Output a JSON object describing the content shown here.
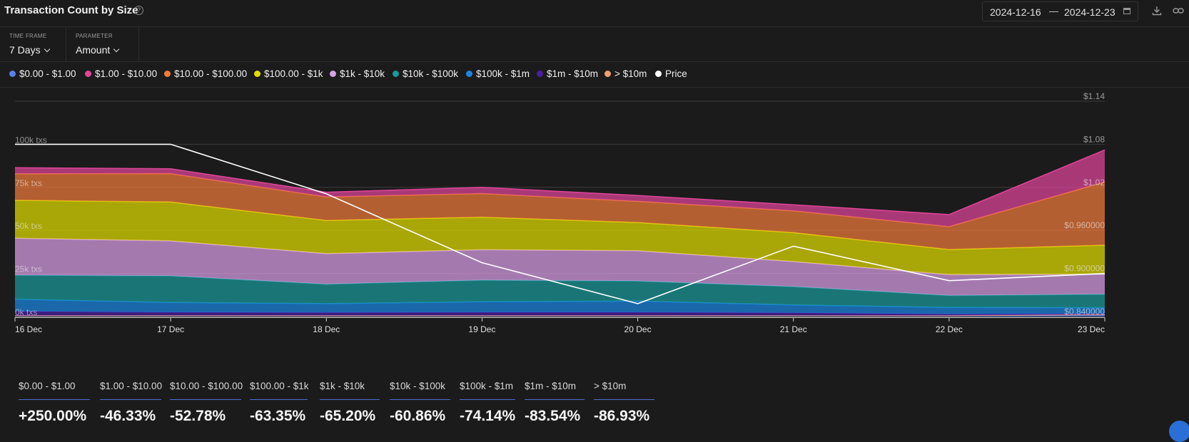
{
  "header": {
    "title": "Transaction Count by Size",
    "date_start": "2024-12-16",
    "date_end": "2024-12-23"
  },
  "controls": {
    "time_frame_label": "TIME FRAME",
    "time_frame_value": "7 Days",
    "parameter_label": "PARAMETER",
    "parameter_value": "Amount"
  },
  "legend": [
    {
      "label": "$0.00 - $1.00",
      "color": "#5b7fe8"
    },
    {
      "label": "$1.00 - $10.00",
      "color": "#e0459a"
    },
    {
      "label": "$10.00 - $100.00",
      "color": "#f07a3a"
    },
    {
      "label": "$100.00 - $1k",
      "color": "#e0dd00"
    },
    {
      "label": "$1k - $10k",
      "color": "#d9a0e8"
    },
    {
      "label": "$10k - $100k",
      "color": "#1a9a9a"
    },
    {
      "label": "$100k - $1m",
      "color": "#1a86e0"
    },
    {
      "label": "$1m - $10m",
      "color": "#4b1fa0"
    },
    {
      "label": "> $10m",
      "color": "#f0a070"
    },
    {
      "label": "Price",
      "color": "#ffffff"
    }
  ],
  "chart_data": {
    "type": "area",
    "x": [
      "16 Dec",
      "17 Dec",
      "18 Dec",
      "19 Dec",
      "20 Dec",
      "21 Dec",
      "22 Dec",
      "23 Dec"
    ],
    "left_axis": {
      "ticks": [
        "100k txs",
        "75k txs",
        "50k txs",
        "25k txs",
        "0k txs"
      ],
      "range": [
        0,
        125000
      ]
    },
    "right_axis": {
      "ticks": [
        "$1.14",
        "$1.08",
        "$1.02",
        "$0.960000",
        "$0.900000",
        "$0.840000"
      ],
      "range": [
        0.84,
        1.14
      ]
    },
    "series": [
      {
        "name": "$0.00 - $1.00",
        "color": "#5b7fe8",
        "values": [
          300,
          300,
          300,
          300,
          300,
          300,
          300,
          1050
        ]
      },
      {
        "name": "> $10m",
        "color": "#f0a070",
        "values": [
          200,
          200,
          200,
          200,
          200,
          200,
          200,
          200
        ]
      },
      {
        "name": "$1m - $10m",
        "color": "#4b1fa0",
        "values": [
          2500,
          2000,
          1800,
          2000,
          2000,
          1700,
          900,
          400
        ]
      },
      {
        "name": "$100k - $1m",
        "color": "#1a86e0",
        "values": [
          7000,
          5700,
          5200,
          6100,
          6500,
          4500,
          3900,
          3500
        ]
      },
      {
        "name": "$10k - $100k",
        "color": "#1a9a9a",
        "values": [
          14000,
          15400,
          11300,
          12500,
          11600,
          10700,
          6900,
          7800
        ]
      },
      {
        "name": "$1k - $10k",
        "color": "#d9a0e8",
        "values": [
          21500,
          20300,
          17700,
          17700,
          17600,
          14500,
          12100,
          11600
        ]
      },
      {
        "name": "$100.00 - $1k",
        "color": "#e0dd00",
        "values": [
          22000,
          22600,
          19300,
          18900,
          16400,
          16800,
          14600,
          16900
        ]
      },
      {
        "name": "$10.00 - $100.00",
        "color": "#f07a3a",
        "values": [
          15400,
          16500,
          13600,
          13700,
          12300,
          12700,
          13300,
          36700
        ]
      },
      {
        "name": "$1.00 - $10.00",
        "color": "#e0459a",
        "values": [
          3500,
          2800,
          2800,
          3600,
          3400,
          3500,
          7000,
          18600
        ]
      }
    ],
    "price": {
      "name": "Price",
      "color": "#ffffff",
      "values": [
        1.08,
        1.08,
        1.011,
        0.915,
        0.858,
        0.938,
        0.89,
        0.9
      ]
    }
  },
  "stats": [
    {
      "label": "$0.00 - $1.00",
      "value": "+250.00%"
    },
    {
      "label": "$1.00 - $10.00",
      "value": "-46.33%"
    },
    {
      "label": "$10.00 - $100.00",
      "value": "-52.78%"
    },
    {
      "label": "$100.00 - $1k",
      "value": "-63.35%"
    },
    {
      "label": "$1k - $10k",
      "value": "-65.20%"
    },
    {
      "label": "$10k - $100k",
      "value": "-60.86%"
    },
    {
      "label": "$100k - $1m",
      "value": "-74.14%"
    },
    {
      "label": "$1m - $10m",
      "value": "-83.54%"
    },
    {
      "label": "> $10m",
      "value": "-86.93%"
    }
  ]
}
